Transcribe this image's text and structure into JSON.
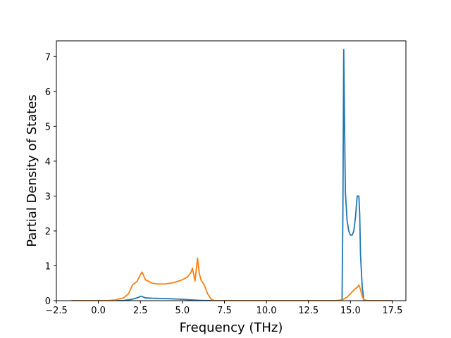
{
  "chart_data": {
    "type": "line",
    "title": "",
    "xlabel": "Frequency (THz)",
    "ylabel": "Partial Density of States",
    "xlim": [
      -2.5,
      18.3
    ],
    "ylim": [
      0,
      7.45
    ],
    "xticks": [
      -2.5,
      0.0,
      2.5,
      5.0,
      7.5,
      10.0,
      12.5,
      15.0,
      17.5
    ],
    "xtick_labels": [
      "−2.5",
      "0.0",
      "2.5",
      "5.0",
      "7.5",
      "10.0",
      "12.5",
      "15.0",
      "17.5"
    ],
    "yticks": [
      0,
      1,
      2,
      3,
      4,
      5,
      6,
      7
    ],
    "ytick_labels": [
      "0",
      "1",
      "2",
      "3",
      "4",
      "5",
      "6",
      "7"
    ],
    "grid": false,
    "legend": "none",
    "series": [
      {
        "color": "#1f77b4",
        "x": [
          -1.6,
          1.0,
          1.5,
          2.0,
          2.3,
          2.55,
          2.8,
          3.2,
          4.0,
          5.0,
          5.6,
          6.0,
          6.4,
          6.8,
          7.5,
          10.0,
          14.0,
          14.5,
          14.55,
          14.6,
          14.65,
          14.7,
          14.75,
          14.8,
          14.9,
          15.0,
          15.1,
          15.2,
          15.3,
          15.4,
          15.5,
          15.55,
          15.6,
          15.7,
          15.8,
          16.0,
          17.5
        ],
        "y": [
          0,
          0,
          0.005,
          0.04,
          0.08,
          0.13,
          0.08,
          0.07,
          0.06,
          0.04,
          0.02,
          0.01,
          0.005,
          0,
          0,
          0,
          0,
          0,
          2.5,
          7.2,
          5.0,
          3.1,
          2.7,
          2.3,
          2.0,
          1.88,
          1.88,
          2.0,
          2.4,
          3.0,
          3.0,
          2.5,
          1.3,
          0.4,
          0,
          0,
          0
        ]
      },
      {
        "color": "#ff7f0e",
        "x": [
          -1.6,
          0.5,
          1.0,
          1.5,
          1.8,
          2.0,
          2.1,
          2.3,
          2.5,
          2.6,
          2.8,
          3.2,
          3.5,
          4.0,
          4.5,
          5.0,
          5.3,
          5.5,
          5.6,
          5.75,
          5.9,
          6.0,
          6.1,
          6.3,
          6.5,
          6.7,
          6.9,
          7.5,
          10.0,
          14.0,
          14.5,
          14.8,
          15.0,
          15.2,
          15.3,
          15.4,
          15.5,
          15.6,
          15.7,
          15.8,
          16.0,
          17.5
        ],
        "y": [
          0,
          0,
          0.02,
          0.08,
          0.2,
          0.42,
          0.48,
          0.55,
          0.75,
          0.82,
          0.6,
          0.5,
          0.48,
          0.48,
          0.52,
          0.6,
          0.68,
          0.8,
          0.93,
          0.56,
          1.22,
          0.8,
          0.6,
          0.45,
          0.2,
          0.05,
          0,
          0,
          0,
          0,
          0.02,
          0.1,
          0.2,
          0.3,
          0.35,
          0.38,
          0.45,
          0.32,
          0.12,
          0.03,
          0,
          0
        ]
      }
    ]
  }
}
